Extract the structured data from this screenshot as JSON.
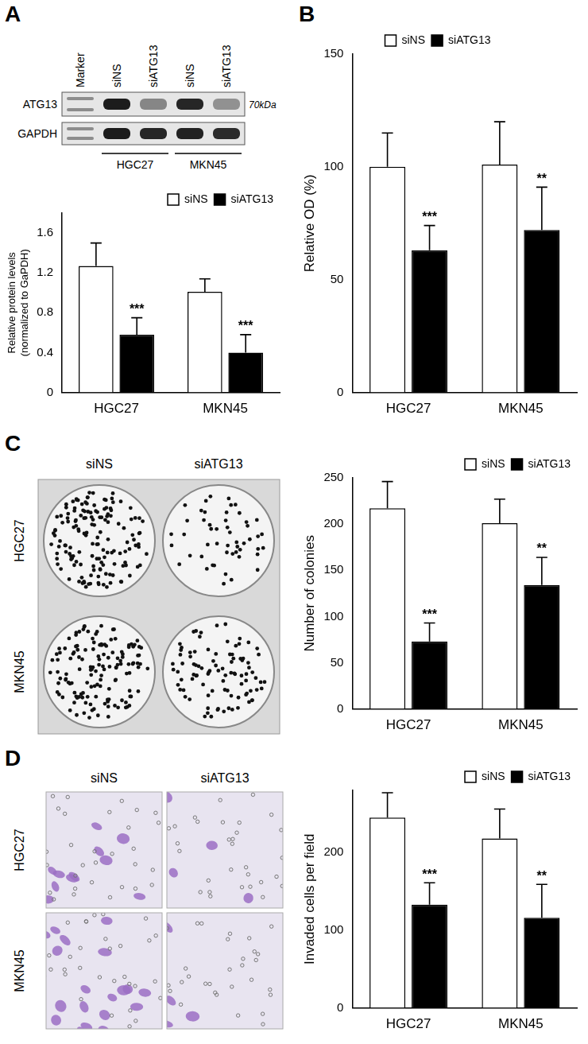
{
  "chart_data": [
    {
      "panel": "A",
      "type": "bar",
      "ylabel": [
        "Relative protein levels",
        "(normalized to GaPDH)"
      ],
      "categories": [
        "HGC27",
        "MKN45"
      ],
      "series": [
        {
          "name": "siNS",
          "color": "#ffffff",
          "values": [
            1.27,
            1.01
          ],
          "error": [
            0.23,
            0.13
          ]
        },
        {
          "name": "siATG13",
          "color": "#000000",
          "values": [
            0.58,
            0.4
          ],
          "error": [
            0.17,
            0.18
          ],
          "significance": [
            "***",
            "***"
          ]
        }
      ],
      "ylim": [
        0,
        1.8
      ],
      "yticks": [
        0,
        0.4,
        0.8,
        1.2,
        1.6
      ],
      "grid": false,
      "legend": "top-right"
    },
    {
      "panel": "B",
      "type": "bar",
      "ylabel": "Relative OD (%)",
      "categories": [
        "HGC27",
        "MKN45"
      ],
      "series": [
        {
          "name": "siNS",
          "color": "#ffffff",
          "values": [
            100,
            101
          ],
          "error": [
            15,
            19
          ]
        },
        {
          "name": "siATG13",
          "color": "#000000",
          "values": [
            63,
            72
          ],
          "error": [
            11,
            19
          ],
          "significance": [
            "***",
            "**"
          ]
        }
      ],
      "ylim": [
        0,
        150
      ],
      "yticks": [
        0,
        50,
        100,
        150
      ],
      "grid": false,
      "legend": "top"
    },
    {
      "panel": "C",
      "type": "bar",
      "ylabel": "Number of colonies",
      "categories": [
        "HGC27",
        "MKN45"
      ],
      "series": [
        {
          "name": "siNS",
          "color": "#ffffff",
          "values": [
            217,
            201
          ],
          "error": [
            29,
            26
          ]
        },
        {
          "name": "siATG13",
          "color": "#000000",
          "values": [
            73,
            134
          ],
          "error": [
            20,
            30
          ],
          "significance": [
            "***",
            "**"
          ]
        }
      ],
      "ylim": [
        0,
        250
      ],
      "yticks": [
        0,
        50,
        100,
        150,
        200,
        250
      ],
      "grid": false,
      "legend": "top-right"
    },
    {
      "panel": "D",
      "type": "bar",
      "ylabel": "Invaded cells per field",
      "categories": [
        "HGC27",
        "MKN45"
      ],
      "series": [
        {
          "name": "siNS",
          "color": "#ffffff",
          "values": [
            245,
            218
          ],
          "error": [
            32,
            38
          ]
        },
        {
          "name": "siATG13",
          "color": "#000000",
          "values": [
            133,
            116
          ],
          "error": [
            28,
            43
          ],
          "significance": [
            "***",
            "**"
          ]
        }
      ],
      "ylim": [
        0,
        280
      ],
      "yticks": [
        0,
        100,
        200
      ],
      "grid": false,
      "legend": "top-right"
    }
  ],
  "blot": {
    "lanes": [
      "Marker",
      "siNS",
      "siATG13",
      "siNS",
      "siATG13"
    ],
    "rows": [
      "ATG13",
      "GAPDH"
    ],
    "size_label": "70kDa",
    "groups": [
      "HGC27",
      "MKN45"
    ]
  },
  "colony_images": {
    "columns": [
      "siNS",
      "siATG13"
    ],
    "rows": [
      "HGC27",
      "MKN45"
    ]
  },
  "invasion_images": {
    "columns": [
      "siNS",
      "siATG13"
    ],
    "rows": [
      "HGC27",
      "MKN45"
    ]
  }
}
